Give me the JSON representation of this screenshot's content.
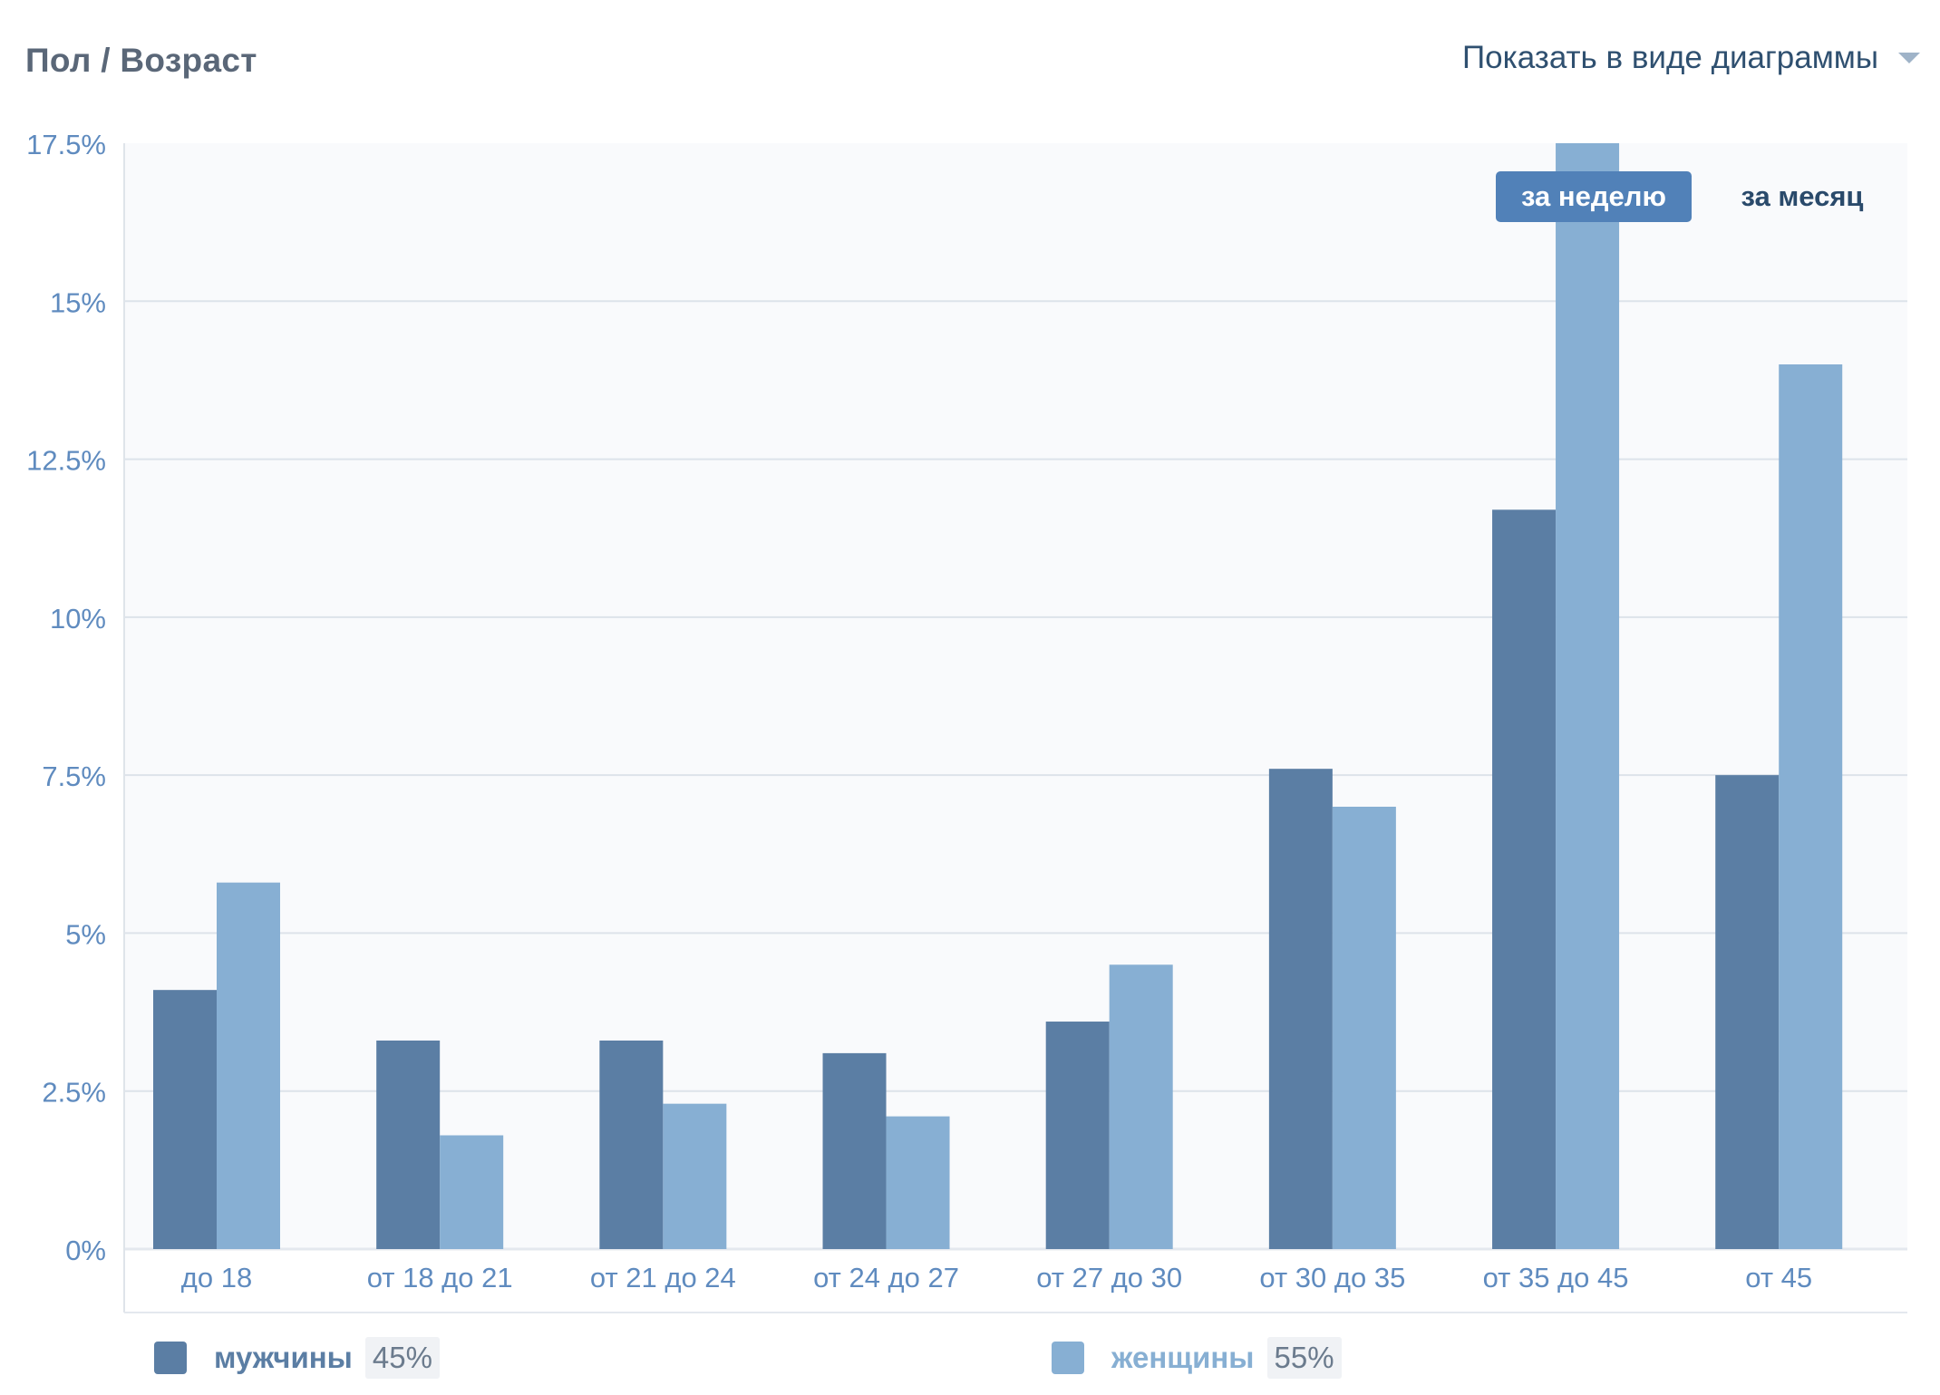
{
  "header": {
    "title": "Пол / Возраст",
    "view_toggle_label": "Показать в виде диаграммы"
  },
  "period": {
    "active_label": "за неделю",
    "inactive_label": "за месяц"
  },
  "legend": [
    {
      "name": "мужчины",
      "percent": "45%",
      "color": "#5b7ea4"
    },
    {
      "name": "женщины",
      "percent": "55%",
      "color": "#87afd3"
    }
  ],
  "colors": {
    "male": "#5b7ea4",
    "female": "#87afd3",
    "axis_text": "#5f8bbf",
    "grid": "#dde3ea",
    "plot_bg": "#f9fafc"
  },
  "chart_data": {
    "type": "bar",
    "categories": [
      "до 18",
      "от 18 до 21",
      "от 21 до 24",
      "от 24 до 27",
      "от 27 до 30",
      "от 30 до 35",
      "от 35 до 45",
      "от 45"
    ],
    "series": [
      {
        "name": "мужчины",
        "values": [
          4.1,
          3.3,
          3.3,
          3.1,
          3.6,
          7.6,
          11.7,
          7.5
        ]
      },
      {
        "name": "женщины",
        "values": [
          5.8,
          1.8,
          2.3,
          2.1,
          4.5,
          7.0,
          17.5,
          14.0
        ]
      }
    ],
    "ylim": [
      0,
      17.5
    ],
    "yticks": [
      0,
      2.5,
      5,
      7.5,
      10,
      12.5,
      15,
      17.5
    ],
    "ytick_labels": [
      "0%",
      "2.5%",
      "5%",
      "7.5%",
      "10%",
      "12.5%",
      "15%",
      "17.5%"
    ],
    "grid": true,
    "legend_position": "bottom"
  }
}
